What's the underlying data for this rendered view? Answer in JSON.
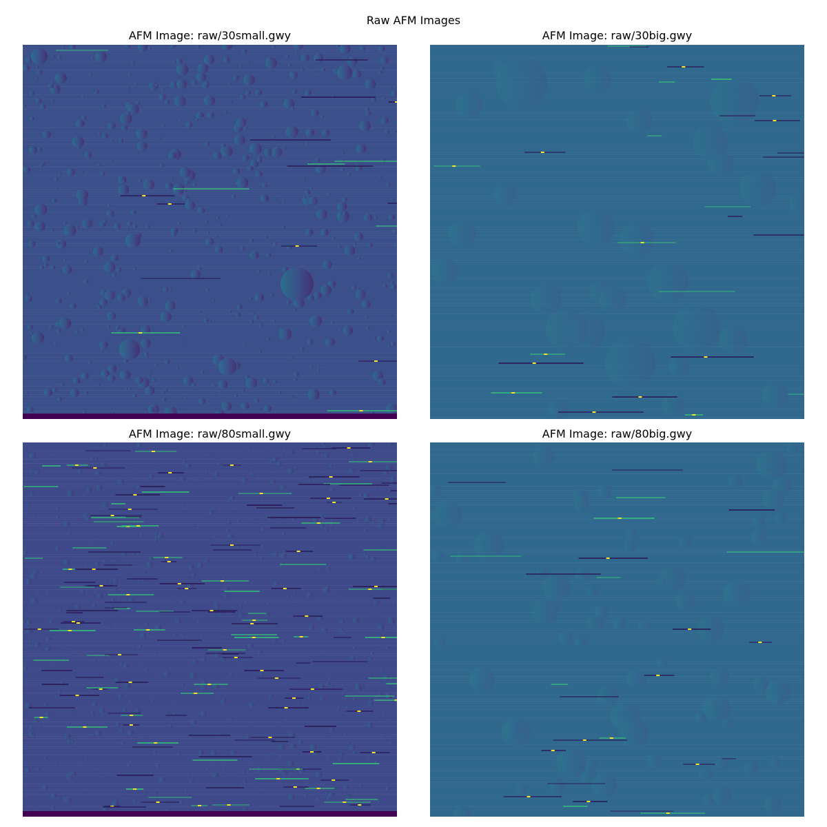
{
  "figure": {
    "title": "Raw AFM Images"
  },
  "panels": [
    {
      "title": "AFM Image: raw/30small.gwy",
      "background": "#3b4f8b",
      "bottom_band": "#440154",
      "theme": "small"
    },
    {
      "title": "AFM Image: raw/30big.gwy",
      "background": "#31688e",
      "theme": "big"
    },
    {
      "title": "AFM Image: raw/80small.gwy",
      "background": "#3e4a89",
      "bottom_band": "#440154",
      "theme": "noisy"
    },
    {
      "title": "AFM Image: raw/80big.gwy",
      "background": "#31688e",
      "theme": "big2"
    }
  ],
  "colormap": "viridis"
}
